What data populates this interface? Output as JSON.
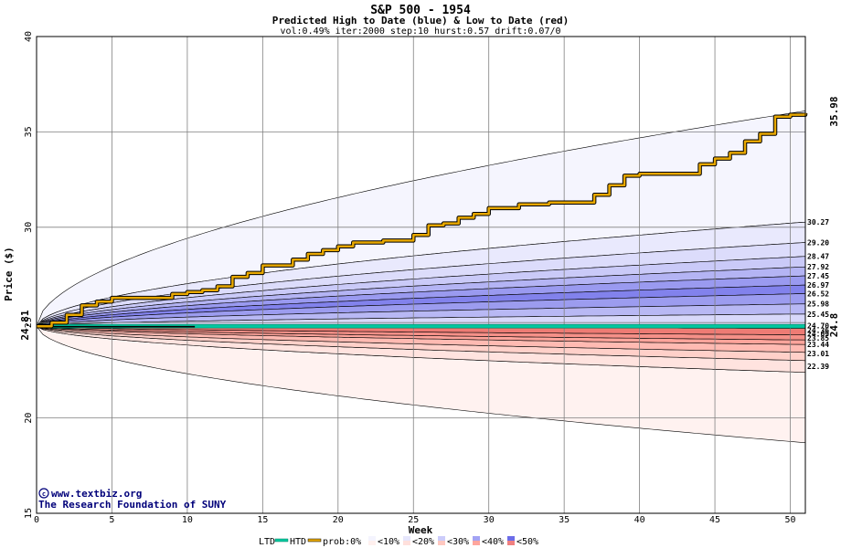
{
  "chart_data": {
    "type": "area",
    "title": "S&P 500 - 1954",
    "subtitle": "Predicted High to Date (blue) &  Low to Date (red)",
    "params": "vol:0.49% iter:2000 step:10 hurst:0.57 drift:0.07/0",
    "xlabel": "Week",
    "ylabel": "Price ($)",
    "xlim": [
      0,
      51
    ],
    "ylim": [
      15,
      40
    ],
    "xticks": [
      "0",
      "5",
      "10",
      "15",
      "20",
      "25",
      "30",
      "35",
      "40",
      "45",
      "50"
    ],
    "yticks": [
      "15",
      "20",
      "25",
      "30",
      "35",
      "40"
    ],
    "start_value": 24.81,
    "start_label": "24.81",
    "end_actual_label": "24.8",
    "end_high_label": "35.98",
    "upper_band_labels": [
      "30.27",
      "29.20",
      "28.47",
      "27.92",
      "27.45",
      "26.97",
      "26.52",
      "25.98",
      "25.45"
    ],
    "upper_band_values": [
      30.27,
      29.2,
      28.47,
      27.92,
      27.45,
      26.97,
      26.52,
      25.98,
      25.45
    ],
    "lower_band_labels": [
      "24.70",
      "24.36",
      "24.09",
      "23.85",
      "23.44",
      "23.01",
      "22.39"
    ],
    "lower_band_values": [
      24.7,
      24.36,
      24.09,
      23.85,
      23.44,
      23.01,
      22.39
    ],
    "upper_envelope_end": 36.1,
    "lower_envelope_end": 18.7,
    "actual_high_to_date": {
      "x": [
        0,
        1,
        2,
        3,
        4,
        5,
        6,
        7,
        8,
        9,
        10,
        11,
        12,
        13,
        14,
        15,
        16,
        17,
        18,
        19,
        20,
        21,
        22,
        23,
        24,
        25,
        26,
        27,
        28,
        29,
        30,
        31,
        32,
        33,
        34,
        35,
        36,
        37,
        38,
        39,
        40,
        41,
        42,
        43,
        44,
        45,
        46,
        47,
        48,
        49,
        50,
        51
      ],
      "y": [
        24.81,
        25.0,
        25.4,
        25.9,
        26.1,
        26.3,
        26.3,
        26.3,
        26.3,
        26.5,
        26.6,
        26.7,
        26.9,
        27.4,
        27.6,
        28.0,
        28.0,
        28.3,
        28.6,
        28.8,
        29.0,
        29.2,
        29.2,
        29.3,
        29.3,
        29.6,
        30.1,
        30.2,
        30.5,
        30.7,
        31.0,
        31.0,
        31.2,
        31.2,
        31.3,
        31.3,
        31.3,
        31.7,
        32.2,
        32.7,
        32.8,
        32.8,
        32.8,
        32.8,
        33.3,
        33.6,
        33.9,
        34.5,
        34.9,
        35.8,
        35.9,
        35.98
      ]
    },
    "legend": {
      "ltd": "LTD",
      "htd": "HTD",
      "prob": "prob:0%",
      "items": [
        "<10%",
        "<20%",
        "<30%",
        "<40%",
        "<50%"
      ],
      "colors": [
        "#f4f4fe",
        "#e6e6fc",
        "#ccccfa",
        "#a3a3f4",
        "#6c6ce8"
      ],
      "colors_low": [
        "#fff0ee",
        "#ffe0dc",
        "#ffc8c0",
        "#ffa69e",
        "#f08080"
      ]
    },
    "colors": {
      "htd_line": "#e8a800",
      "ltd_line": "#00c8a0",
      "ltd_dark": "#000000",
      "grid": "#808080",
      "actual_label": "#006b3c",
      "high_label": "#b8860b"
    },
    "credit_line1": "www.textbiz.org",
    "credit_line2": "The Research Foundation of SUNY"
  }
}
